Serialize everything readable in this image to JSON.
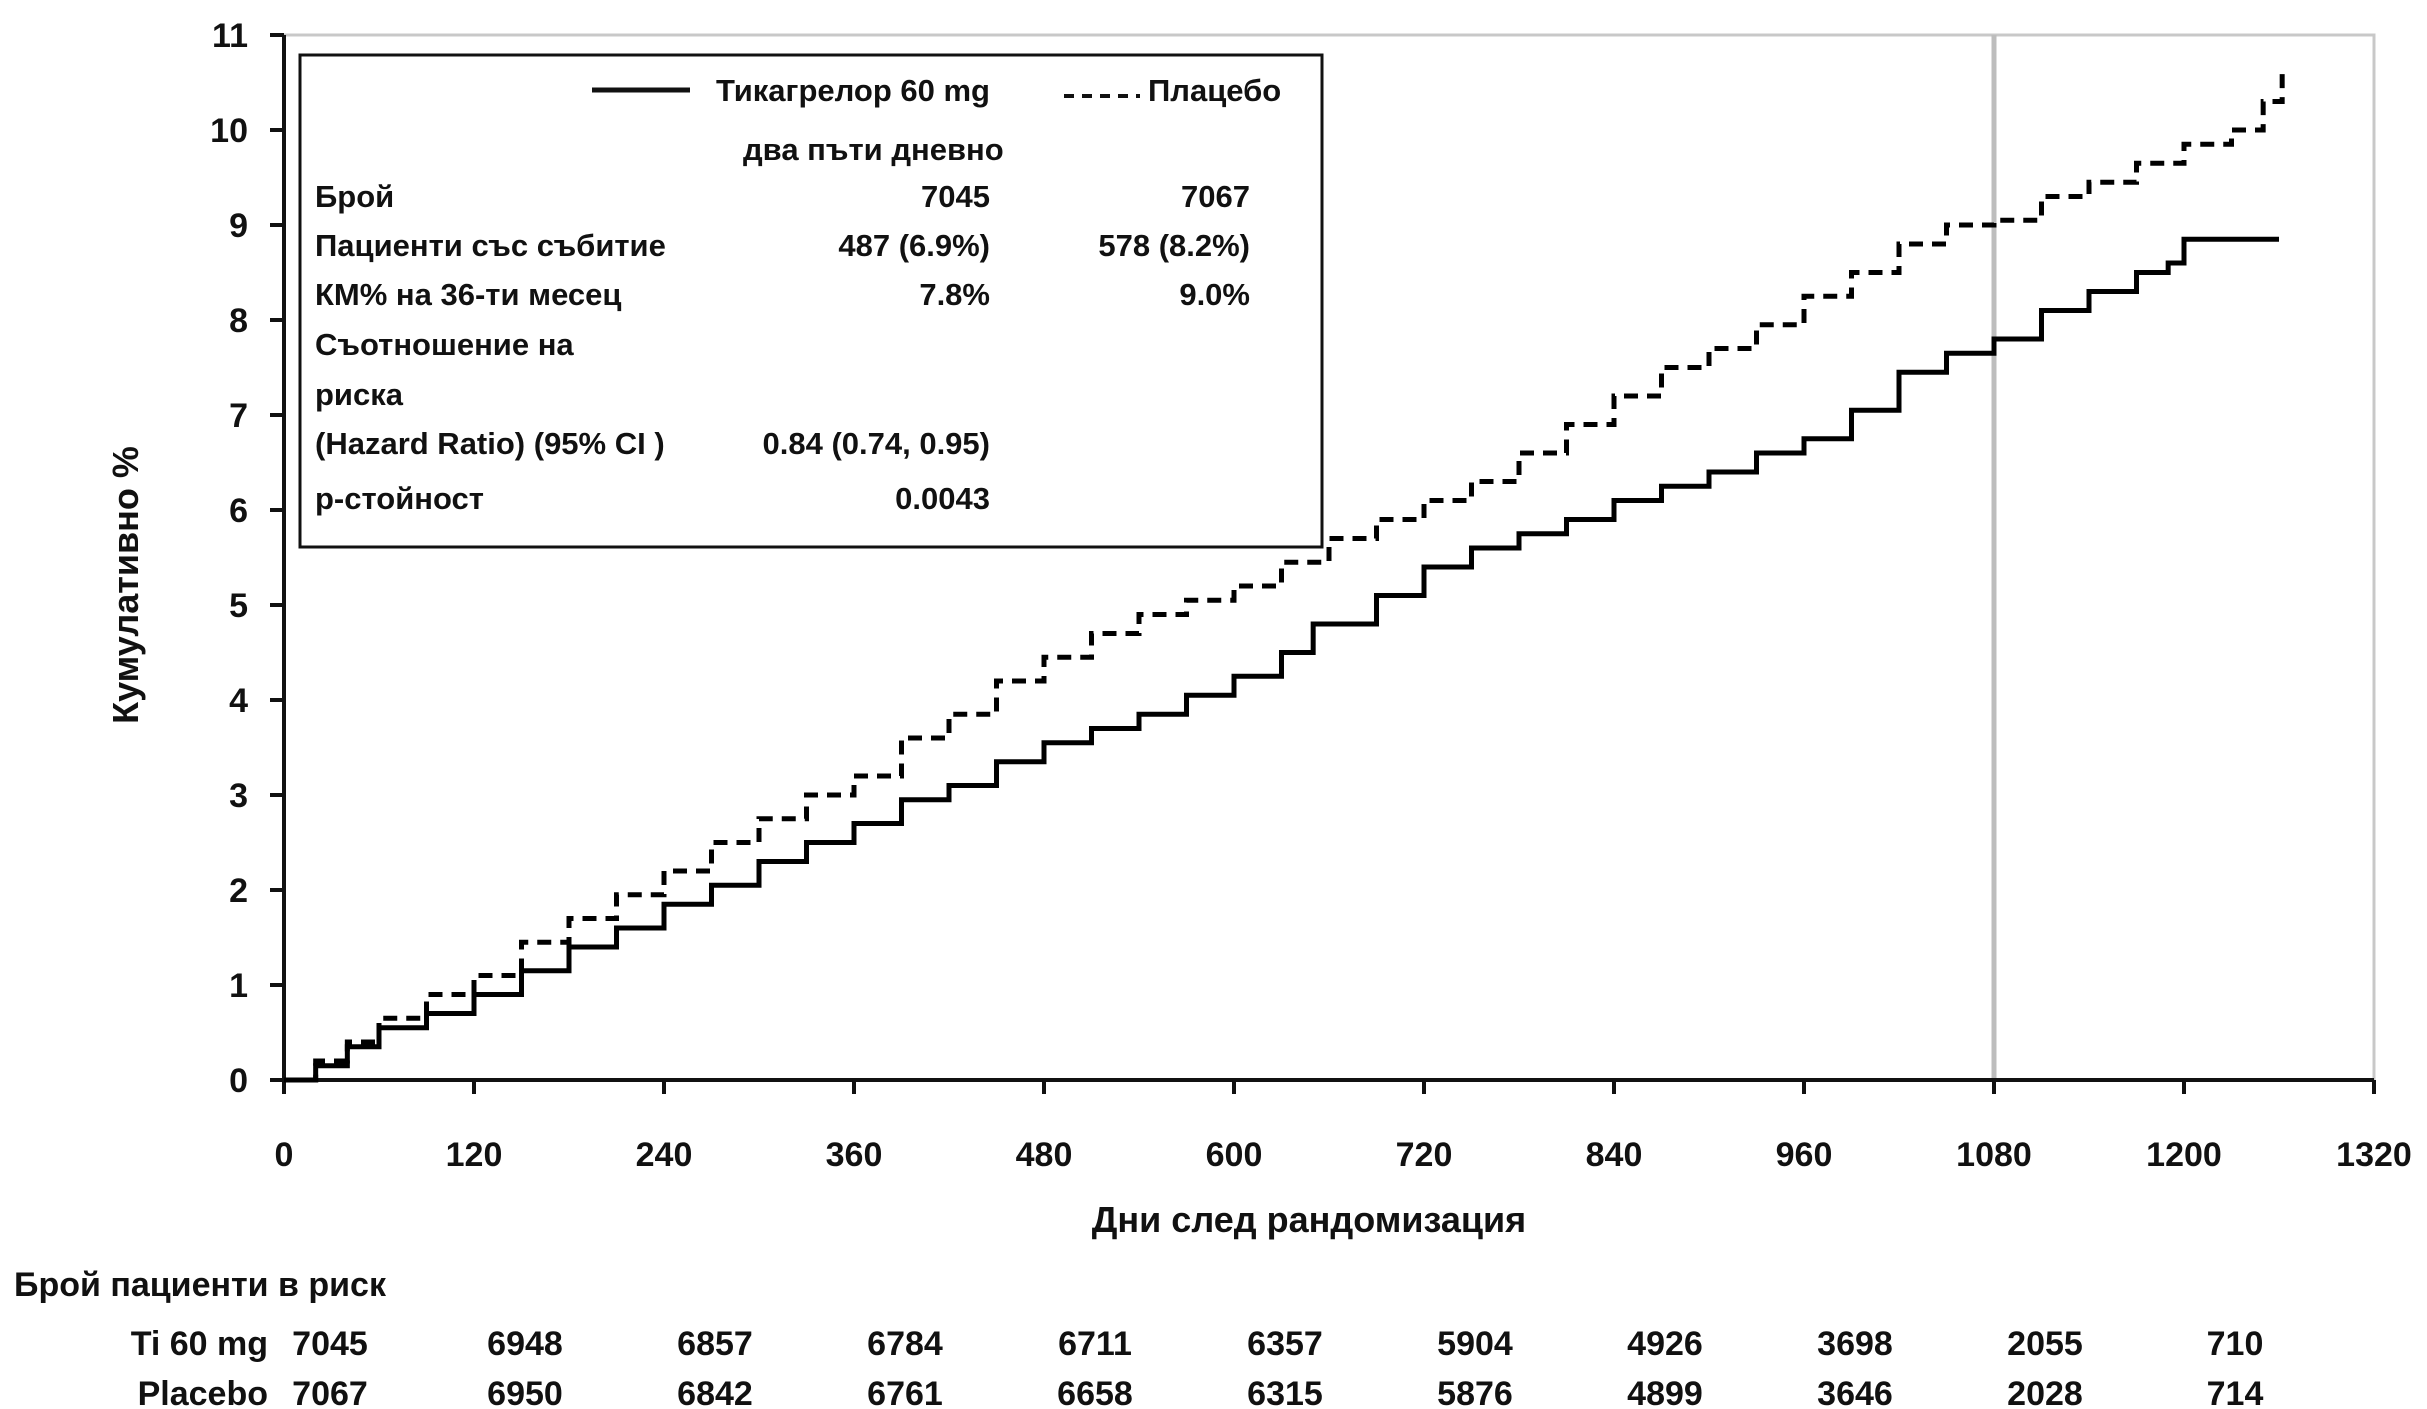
{
  "chart_data": {
    "type": "line",
    "xlabel": "Дни след рандомизация",
    "ylabel": "Кумулативно %",
    "xlim": [
      0,
      1320
    ],
    "ylim": [
      0,
      11
    ],
    "x_ticks": [
      "0",
      "120",
      "240",
      "360",
      "480",
      "600",
      "720",
      "840",
      "960",
      "1080",
      "1200",
      "1320"
    ],
    "y_ticks": [
      "0",
      "1",
      "2",
      "3",
      "4",
      "5",
      "6",
      "7",
      "8",
      "9",
      "10",
      "11"
    ],
    "reference_line_x": 1080,
    "series": [
      {
        "name": "Тикагрелор 60 mg два пъти дневно",
        "style": "solid",
        "color": "#000000",
        "points": [
          [
            0,
            0
          ],
          [
            20,
            0.15
          ],
          [
            40,
            0.35
          ],
          [
            60,
            0.55
          ],
          [
            90,
            0.7
          ],
          [
            120,
            0.9
          ],
          [
            150,
            1.15
          ],
          [
            180,
            1.4
          ],
          [
            210,
            1.6
          ],
          [
            240,
            1.85
          ],
          [
            270,
            2.05
          ],
          [
            300,
            2.3
          ],
          [
            330,
            2.5
          ],
          [
            360,
            2.7
          ],
          [
            390,
            2.95
          ],
          [
            420,
            3.1
          ],
          [
            450,
            3.35
          ],
          [
            480,
            3.55
          ],
          [
            510,
            3.7
          ],
          [
            540,
            3.85
          ],
          [
            570,
            4.05
          ],
          [
            600,
            4.25
          ],
          [
            630,
            4.5
          ],
          [
            650,
            4.8
          ],
          [
            690,
            5.1
          ],
          [
            720,
            5.4
          ],
          [
            750,
            5.6
          ],
          [
            780,
            5.75
          ],
          [
            810,
            5.9
          ],
          [
            840,
            6.1
          ],
          [
            870,
            6.25
          ],
          [
            900,
            6.4
          ],
          [
            930,
            6.6
          ],
          [
            960,
            6.75
          ],
          [
            990,
            7.05
          ],
          [
            1020,
            7.45
          ],
          [
            1050,
            7.65
          ],
          [
            1080,
            7.8
          ],
          [
            1110,
            8.1
          ],
          [
            1140,
            8.3
          ],
          [
            1170,
            8.5
          ],
          [
            1190,
            8.6
          ],
          [
            1200,
            8.85
          ],
          [
            1230,
            8.85
          ],
          [
            1260,
            8.85
          ]
        ]
      },
      {
        "name": "Плацебо",
        "style": "dashed",
        "color": "#000000",
        "points": [
          [
            0,
            0
          ],
          [
            20,
            0.2
          ],
          [
            40,
            0.4
          ],
          [
            60,
            0.65
          ],
          [
            90,
            0.9
          ],
          [
            120,
            1.1
          ],
          [
            150,
            1.45
          ],
          [
            180,
            1.7
          ],
          [
            210,
            1.95
          ],
          [
            240,
            2.2
          ],
          [
            270,
            2.5
          ],
          [
            300,
            2.75
          ],
          [
            330,
            3.0
          ],
          [
            360,
            3.2
          ],
          [
            390,
            3.6
          ],
          [
            420,
            3.85
          ],
          [
            450,
            4.2
          ],
          [
            480,
            4.45
          ],
          [
            510,
            4.7
          ],
          [
            540,
            4.9
          ],
          [
            570,
            5.05
          ],
          [
            600,
            5.2
          ],
          [
            630,
            5.45
          ],
          [
            660,
            5.7
          ],
          [
            690,
            5.9
          ],
          [
            720,
            6.1
          ],
          [
            750,
            6.3
          ],
          [
            780,
            6.6
          ],
          [
            810,
            6.9
          ],
          [
            840,
            7.2
          ],
          [
            870,
            7.5
          ],
          [
            900,
            7.7
          ],
          [
            930,
            7.95
          ],
          [
            960,
            8.25
          ],
          [
            990,
            8.5
          ],
          [
            1020,
            8.8
          ],
          [
            1050,
            9.0
          ],
          [
            1080,
            9.05
          ],
          [
            1110,
            9.3
          ],
          [
            1140,
            9.45
          ],
          [
            1170,
            9.65
          ],
          [
            1200,
            9.85
          ],
          [
            1230,
            10.0
          ],
          [
            1250,
            10.3
          ],
          [
            1262,
            10.65
          ]
        ]
      }
    ],
    "legend": {
      "placement": "top-left",
      "series_labels": [
        "Тикагрелор 60 mg",
        "Плацебо"
      ],
      "series_label_line2": "два пъти дневно",
      "rows": [
        {
          "label": "Брой",
          "ti": "7045",
          "pl": "7067"
        },
        {
          "label": "Пациенти със събитие",
          "ti": "487 (6.9%)",
          "pl": "578 (8.2%)"
        },
        {
          "label": "КМ% на 36-ти месец",
          "ti": "7.8%",
          "pl": "9.0%"
        },
        {
          "label": "Съотношение на",
          "ti": "",
          "pl": ""
        },
        {
          "label": "риска",
          "ti": "",
          "pl": ""
        },
        {
          "label": "(Hazard Ratio) (95% CI )",
          "ti": "0.84 (0.74, 0.95)",
          "pl": ""
        },
        {
          "label": "р-стойност",
          "ti": "0.0043",
          "pl": ""
        }
      ]
    },
    "risk_table": {
      "title": "Брой пациенти в риск",
      "rows": [
        {
          "label": "Ti 60 mg",
          "values": [
            "7045",
            "6948",
            "6857",
            "6784",
            "6711",
            "6357",
            "5904",
            "4926",
            "3698",
            "2055",
            "710"
          ]
        },
        {
          "label": "Placebo",
          "values": [
            "7067",
            "6950",
            "6842",
            "6761",
            "6658",
            "6315",
            "5876",
            "4899",
            "3646",
            "2028",
            "714"
          ]
        }
      ]
    }
  }
}
